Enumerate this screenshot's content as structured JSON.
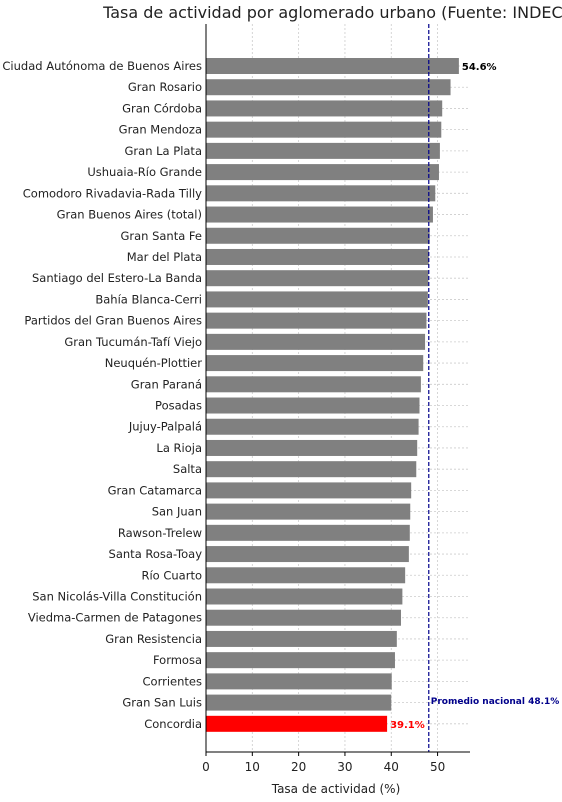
{
  "chart_data": {
    "type": "bar",
    "orientation": "horizontal",
    "title": "Tasa de actividad por aglomerado urbano (Fuente: INDEC)",
    "xlabel": "Tasa de actividad (%)",
    "ylabel": "",
    "xlim": [
      0,
      57
    ],
    "xticks": [
      0,
      10,
      20,
      30,
      40,
      50
    ],
    "grid": true,
    "categories": [
      "Ciudad Autónoma de Buenos Aires",
      "Gran Rosario",
      "Gran Córdoba",
      "Gran Mendoza",
      "Gran La Plata",
      "Ushuaia-Río Grande",
      "Comodoro Rivadavia-Rada Tilly",
      "Gran Buenos Aires (total)",
      "Gran Santa Fe",
      "Mar del Plata",
      "Santiago del Estero-La Banda",
      "Bahía Blanca-Cerri",
      "Partidos del Gran Buenos Aires",
      "Gran Tucumán-Tafí Viejo",
      "Neuquén-Plottier",
      "Gran Paraná",
      "Posadas",
      "Jujuy-Palpalá",
      "La Rioja",
      "Salta",
      "Gran Catamarca",
      "San Juan",
      "Rawson-Trelew",
      "Santa Rosa-Toay",
      "Río Cuarto",
      "San Nicolás-Villa Constitución",
      "Viedma-Carmen de Patagones",
      "Gran Resistencia",
      "Formosa",
      "Corrientes",
      "Gran San Luis",
      "Concordia"
    ],
    "values": [
      54.6,
      52.8,
      51.0,
      50.8,
      50.5,
      50.3,
      49.5,
      49.0,
      48.3,
      48.1,
      48.0,
      47.9,
      47.6,
      47.3,
      46.9,
      46.4,
      46.1,
      45.9,
      45.6,
      45.4,
      44.3,
      44.1,
      44.0,
      43.8,
      43.0,
      42.4,
      42.1,
      41.2,
      40.8,
      40.1,
      40.0,
      39.1
    ],
    "highlight_index": 31,
    "bar_color": "#808080",
    "highlight_color": "#ff0000",
    "top_label_color": "#000000",
    "reference_line": {
      "value": 48.1,
      "label": "Promedio nacional 48.1%",
      "color": "#00008b"
    },
    "data_labels": [
      {
        "index": 0,
        "text": "54.6%"
      },
      {
        "index": 31,
        "text": "39.1%"
      }
    ]
  }
}
